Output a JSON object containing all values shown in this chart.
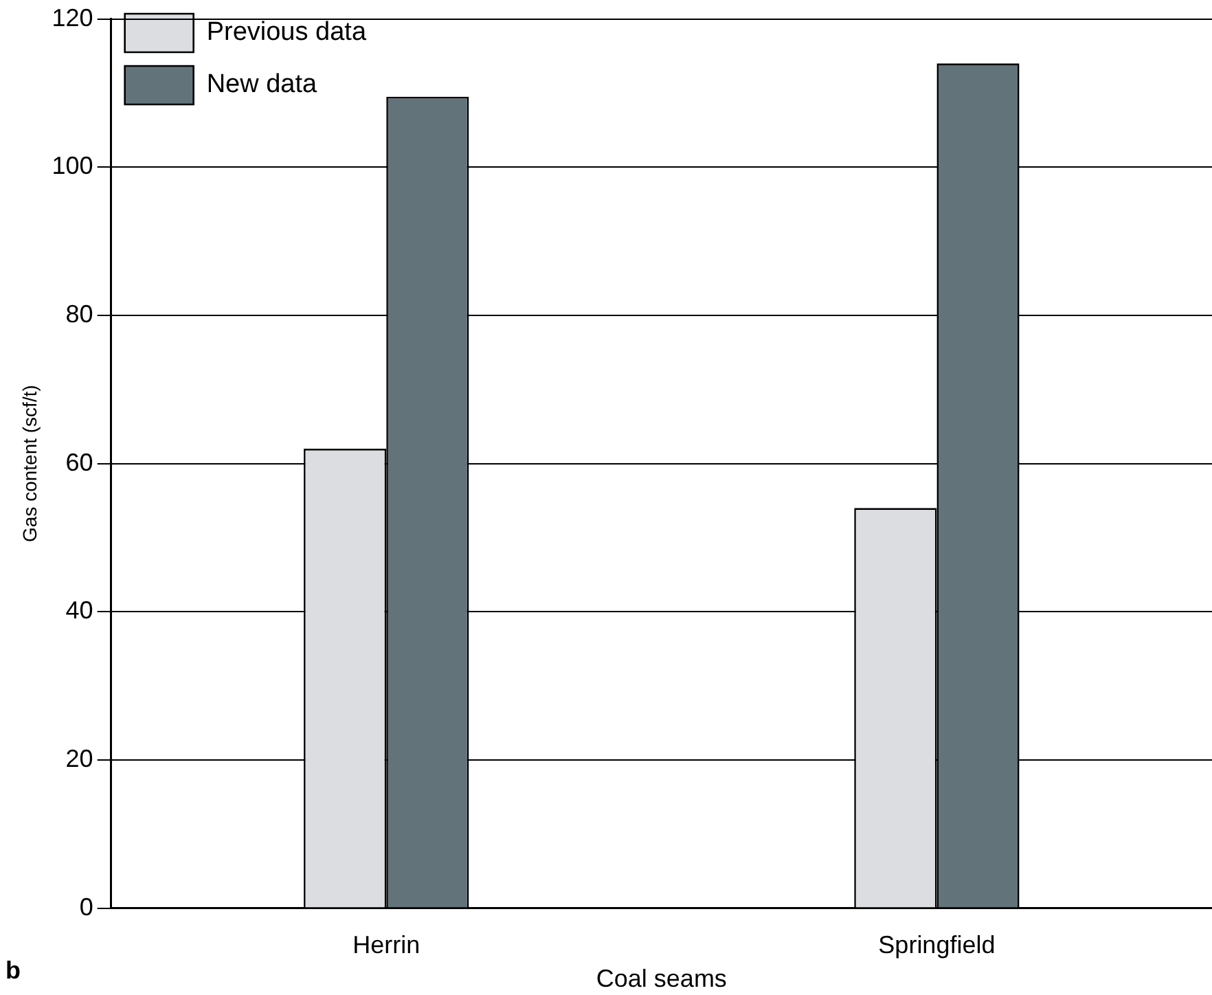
{
  "chart_data": {
    "type": "bar",
    "categories": [
      "Herrin",
      "Springfield"
    ],
    "series": [
      {
        "name": "Previous data",
        "color": "#dcdde0",
        "values": [
          62,
          54
        ]
      },
      {
        "name": "New data",
        "color": "#63737a",
        "values": [
          109.5,
          114
        ]
      }
    ],
    "xlabel": "Coal seams",
    "ylabel": "Gas content (scf/t)",
    "ylim": [
      0,
      120
    ],
    "yticks": [
      0,
      20,
      40,
      60,
      80,
      100,
      120
    ],
    "grid": "y",
    "legend": "top left",
    "annotations": [
      "b"
    ]
  }
}
